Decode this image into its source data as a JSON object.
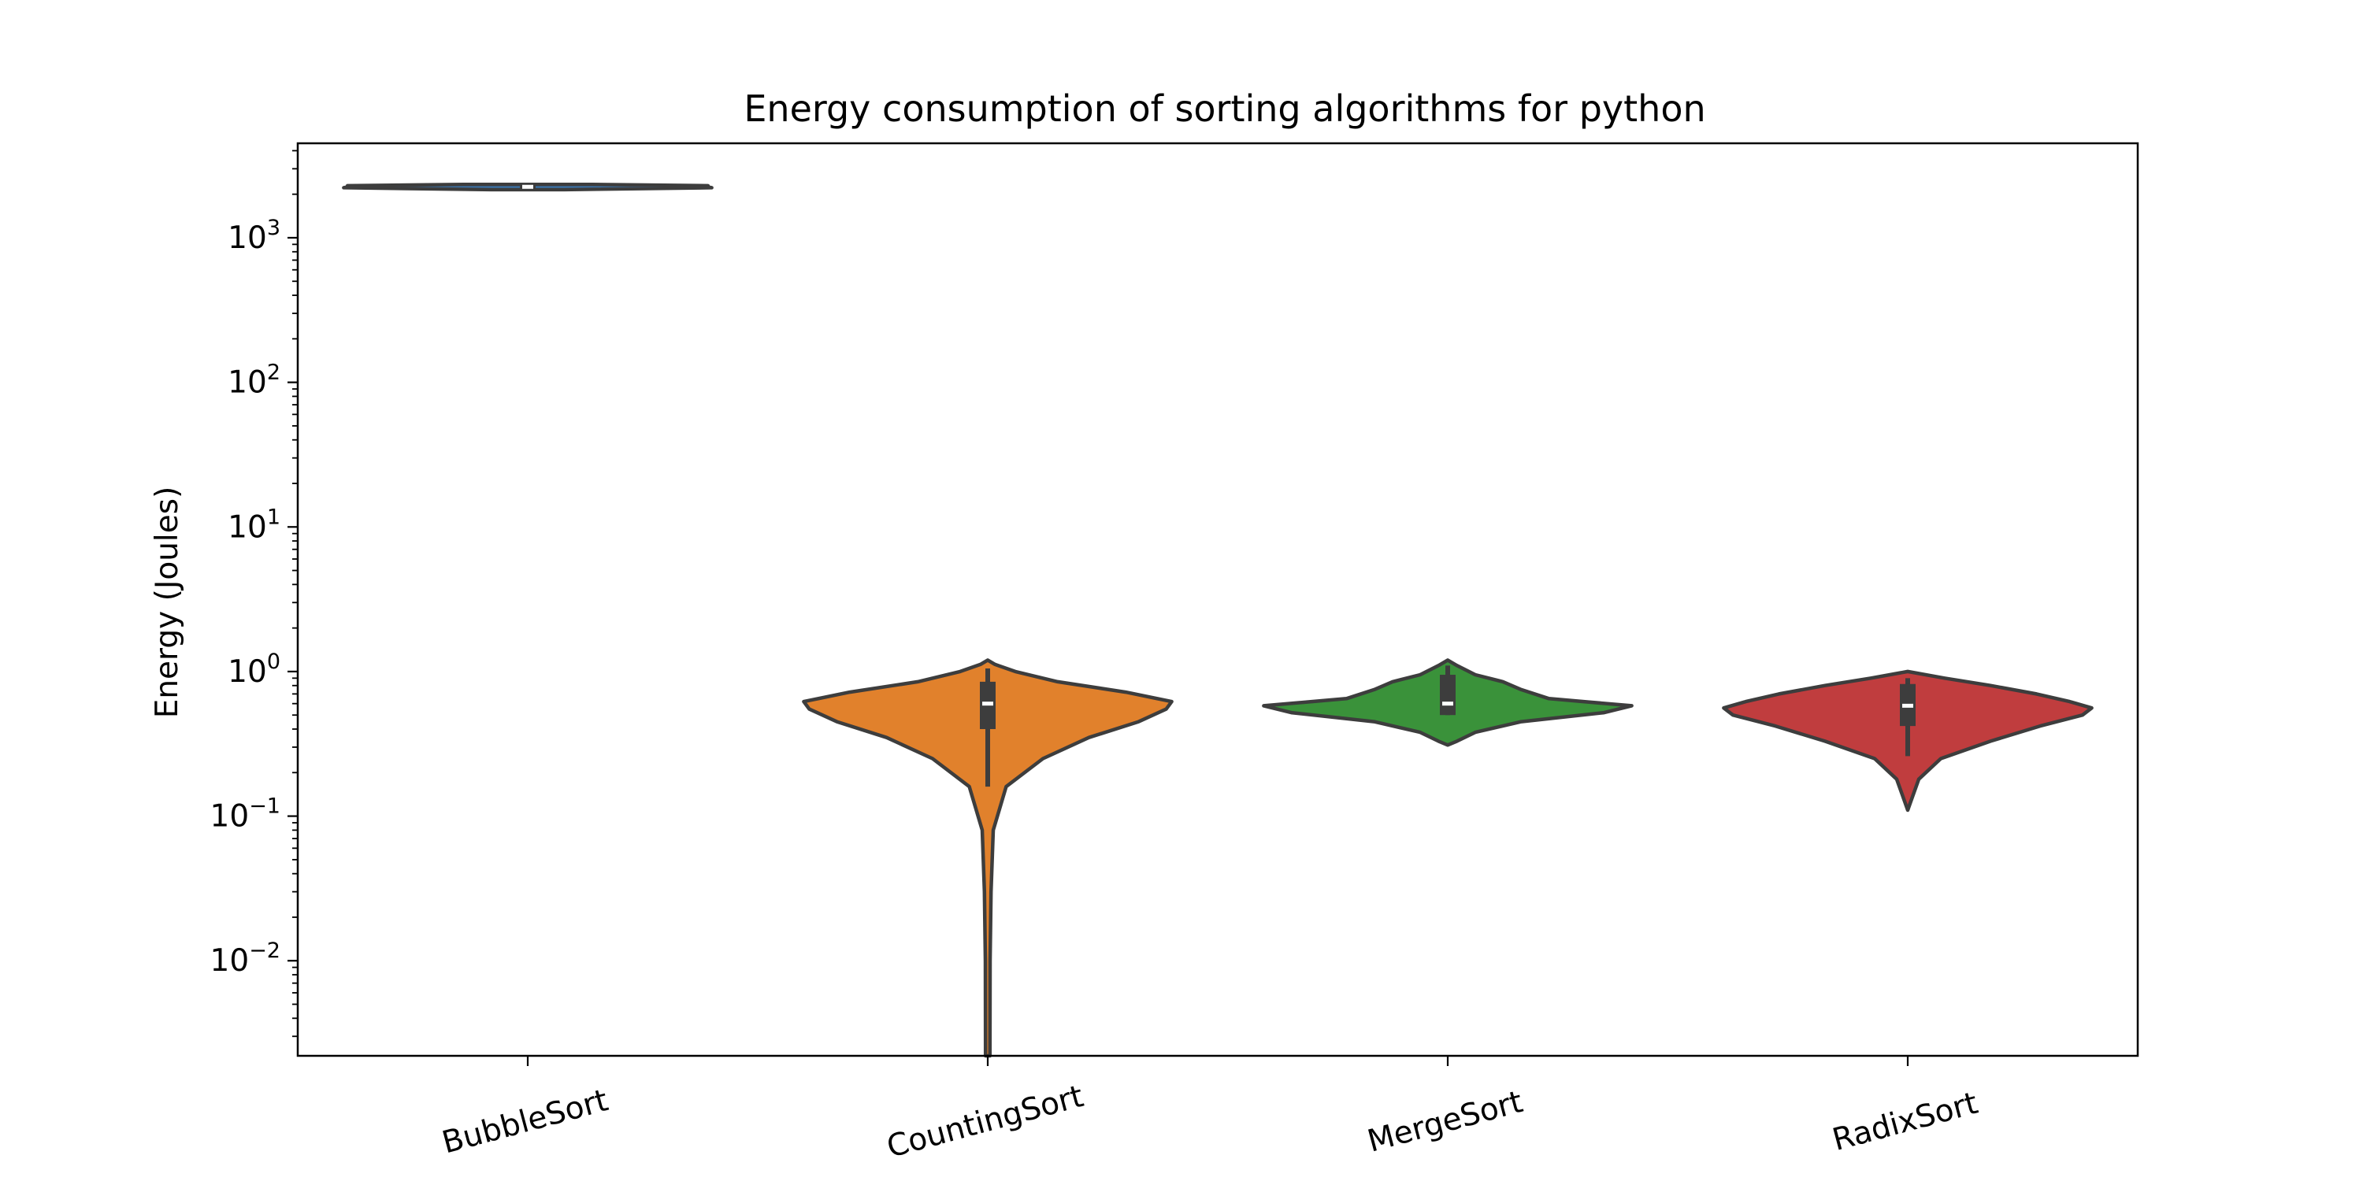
{
  "chart_data": {
    "type": "violin",
    "title": "Energy consumption of sorting algorithms for python",
    "xlabel": "",
    "ylabel": "Energy (Joules)",
    "y_scale": "log",
    "ylim": [
      0.0022,
      4500
    ],
    "y_ticks": [
      {
        "value": 0.01,
        "base": "10",
        "exp": "−2"
      },
      {
        "value": 0.1,
        "base": "10",
        "exp": "−1"
      },
      {
        "value": 1,
        "base": "10",
        "exp": "0"
      },
      {
        "value": 10,
        "base": "10",
        "exp": "1"
      },
      {
        "value": 100,
        "base": "10",
        "exp": "2"
      },
      {
        "value": 1000,
        "base": "10",
        "exp": "3"
      }
    ],
    "categories": [
      "BubbleSort",
      "CountingSort",
      "MergeSort",
      "RadixSort"
    ],
    "grid": false,
    "legend": "none",
    "series": [
      {
        "category": "BubbleSort",
        "color": "#3a75af",
        "min": 2150,
        "q1": 2200,
        "median": 2250,
        "q3": 2300,
        "max": 2350,
        "density": [
          {
            "y": 2150,
            "w": 0.2
          },
          {
            "y": 2220,
            "w": 1.0
          },
          {
            "y": 2260,
            "w": 0.97
          },
          {
            "y": 2290,
            "w": 0.98
          },
          {
            "y": 2340,
            "w": 0.35
          }
        ]
      },
      {
        "category": "CountingSort",
        "color": "#e1812c",
        "min": 0.0022,
        "q1": 0.4,
        "median": 0.6,
        "q3": 0.85,
        "max": 1.2,
        "whisker_low": 0.16,
        "whisker_high": 1.05,
        "density": [
          {
            "y": 0.0022,
            "w": 0.012
          },
          {
            "y": 0.01,
            "w": 0.013
          },
          {
            "y": 0.03,
            "w": 0.018
          },
          {
            "y": 0.08,
            "w": 0.03
          },
          {
            "y": 0.16,
            "w": 0.1
          },
          {
            "y": 0.25,
            "w": 0.3
          },
          {
            "y": 0.35,
            "w": 0.55
          },
          {
            "y": 0.45,
            "w": 0.82
          },
          {
            "y": 0.55,
            "w": 0.97
          },
          {
            "y": 0.62,
            "w": 1.0
          },
          {
            "y": 0.72,
            "w": 0.75
          },
          {
            "y": 0.85,
            "w": 0.38
          },
          {
            "y": 1.0,
            "w": 0.15
          },
          {
            "y": 1.12,
            "w": 0.04
          },
          {
            "y": 1.2,
            "w": 0.0
          }
        ]
      },
      {
        "category": "MergeSort",
        "color": "#3a923a",
        "min": 0.31,
        "q1": 0.5,
        "median": 0.6,
        "q3": 0.95,
        "max": 1.2,
        "whisker_low": 0.5,
        "whisker_high": 1.1,
        "density": [
          {
            "y": 0.31,
            "w": 0.0
          },
          {
            "y": 0.33,
            "w": 0.05
          },
          {
            "y": 0.38,
            "w": 0.15
          },
          {
            "y": 0.45,
            "w": 0.4
          },
          {
            "y": 0.52,
            "w": 0.85
          },
          {
            "y": 0.58,
            "w": 1.0
          },
          {
            "y": 0.65,
            "w": 0.55
          },
          {
            "y": 0.75,
            "w": 0.4
          },
          {
            "y": 0.85,
            "w": 0.3
          },
          {
            "y": 0.95,
            "w": 0.15
          },
          {
            "y": 1.1,
            "w": 0.05
          },
          {
            "y": 1.2,
            "w": 0.0
          }
        ]
      },
      {
        "category": "RadixSort",
        "color": "#c03d3e",
        "min": 0.11,
        "q1": 0.42,
        "median": 0.58,
        "q3": 0.82,
        "max": 1.0,
        "whisker_low": 0.26,
        "whisker_high": 0.9,
        "density": [
          {
            "y": 0.11,
            "w": 0.0
          },
          {
            "y": 0.13,
            "w": 0.02
          },
          {
            "y": 0.18,
            "w": 0.06
          },
          {
            "y": 0.25,
            "w": 0.18
          },
          {
            "y": 0.33,
            "w": 0.45
          },
          {
            "y": 0.42,
            "w": 0.72
          },
          {
            "y": 0.5,
            "w": 0.95
          },
          {
            "y": 0.56,
            "w": 1.0
          },
          {
            "y": 0.62,
            "w": 0.88
          },
          {
            "y": 0.7,
            "w": 0.7
          },
          {
            "y": 0.8,
            "w": 0.45
          },
          {
            "y": 0.9,
            "w": 0.2
          },
          {
            "y": 1.0,
            "w": 0.0
          }
        ]
      }
    ]
  }
}
